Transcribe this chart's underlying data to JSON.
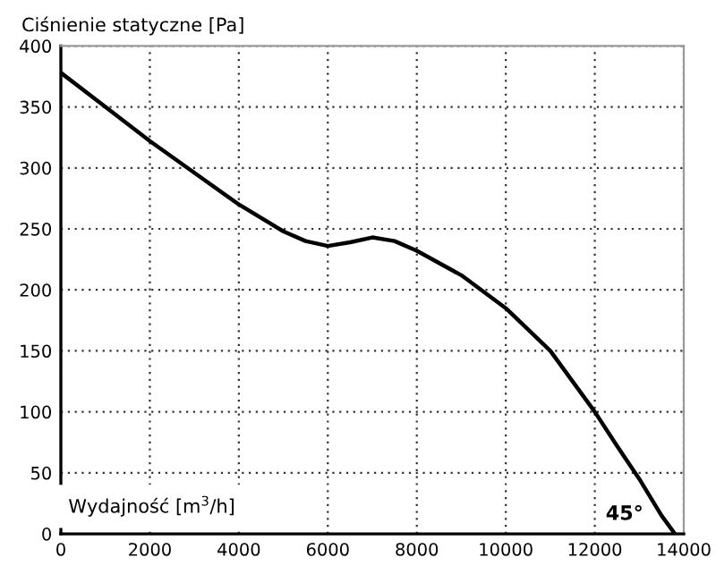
{
  "chart_data": {
    "type": "line",
    "ylabel": "Ciśnienie statyczne [Pa]",
    "xlabel": "Wydajność [m$^{3}$/h]",
    "annotations": [
      "45°"
    ],
    "x": [
      0,
      1000,
      2000,
      3000,
      4000,
      5000,
      5500,
      6000,
      6500,
      7000,
      7500,
      8000,
      9000,
      10000,
      11000,
      12000,
      12500,
      13000,
      13500,
      13800
    ],
    "series": [
      {
        "color": "#000000",
        "values": [
          378,
          350,
          322,
          296,
          270,
          248,
          240,
          236,
          239,
          243,
          240,
          232,
          212,
          185,
          150,
          100,
          72,
          45,
          15,
          0
        ]
      }
    ],
    "xlim": [
      0,
      14000
    ],
    "xticks": [
      0,
      2000,
      4000,
      6000,
      8000,
      10000,
      12000,
      14000
    ],
    "ylim": [
      0,
      400
    ],
    "yticks": [
      0,
      50,
      100,
      150,
      200,
      250,
      300,
      350,
      400
    ],
    "grid": true,
    "line_style": "solid",
    "marker": "none"
  }
}
